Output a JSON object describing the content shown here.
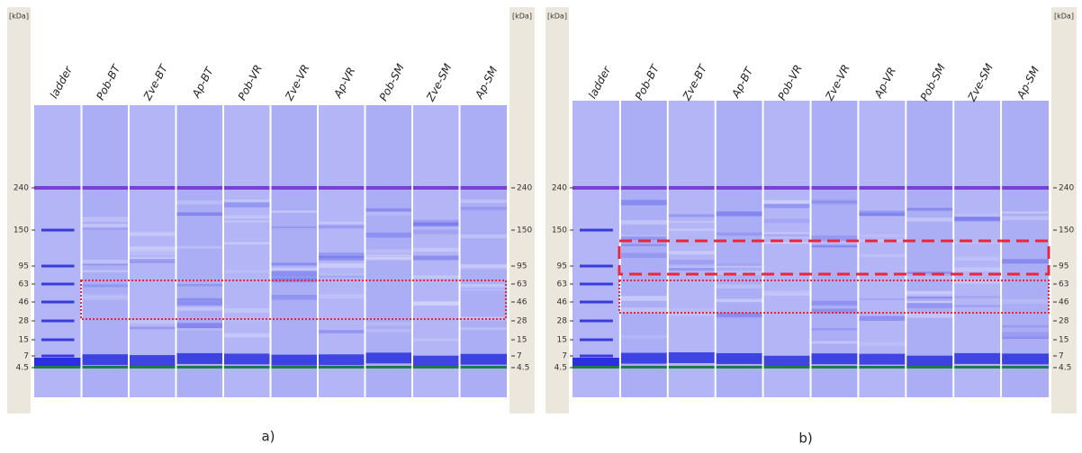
{
  "panels": [
    {
      "unit_left": "[kDa]",
      "unit_right": "[kDa]",
      "lanes": [
        "ladder",
        "Pob-BT",
        "Zve-BT",
        "Ap-BT",
        "Pob-VR",
        "Zve-VR",
        "Ap-VR",
        "Pob-SM",
        "Zve-SM",
        "Ap-SM"
      ],
      "markers": [
        "240",
        "150",
        "95",
        "63",
        "46",
        "28",
        "15",
        "7",
        "4.5"
      ],
      "caption": "a)"
    },
    {
      "unit_left": "[kDa]",
      "unit_right": "[kDa]",
      "lanes": [
        "ladder",
        "Pob-BT",
        "Zve-BT",
        "Ap-BT",
        "Pob-VR",
        "Zve-VR",
        "Ap-VR",
        "Pob-SM",
        "Zve-SM",
        "Ap-SM"
      ],
      "markers": [
        "240",
        "150",
        "95",
        "63",
        "46",
        "28",
        "15",
        "7",
        "4.5"
      ],
      "caption": "b)"
    }
  ]
}
